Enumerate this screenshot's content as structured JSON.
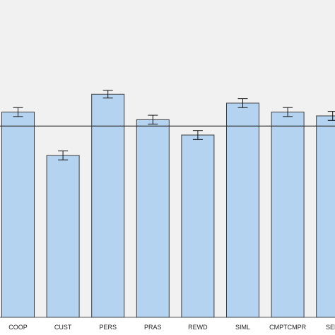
{
  "chart_data": {
    "type": "bar",
    "categories": [
      "COOP",
      "CUST",
      "PERS",
      "PRAS",
      "REWD",
      "SIML",
      "CMPTCMPR",
      "SEM"
    ],
    "values": [
      3.22,
      2.54,
      3.5,
      3.1,
      2.86,
      3.36,
      3.22,
      3.16
    ],
    "error": [
      0.07,
      0.07,
      0.06,
      0.07,
      0.07,
      0.07,
      0.07,
      0.07
    ],
    "reference_line": 3.0,
    "ylim": [
      0,
      5.0
    ],
    "title": "",
    "xlabel": "",
    "ylabel": "",
    "grid": false,
    "colors": {
      "bar_fill": "#b3d3f1",
      "bar_stroke": "#3c3c3c",
      "plot_background": "#f1f1f1",
      "reference_line": "#2b2b2b",
      "error_bar": "#111111"
    }
  }
}
